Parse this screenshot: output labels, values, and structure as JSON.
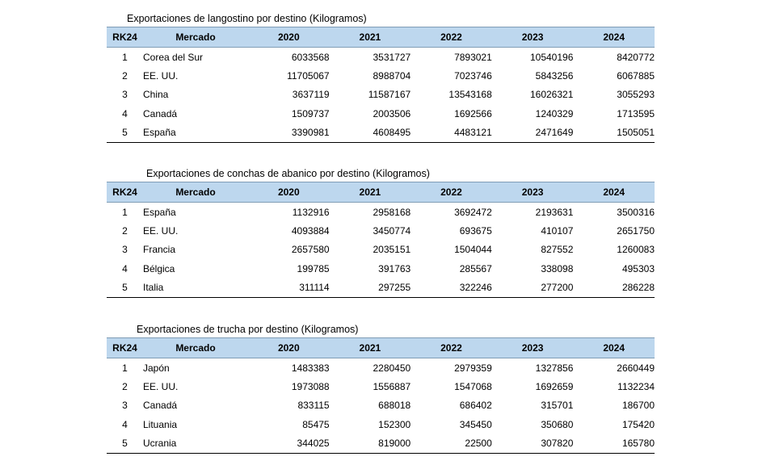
{
  "tables": [
    {
      "caption": "Exportaciones de langostino por destino (Kilogramos)",
      "headers": [
        "RK24",
        "Mercado",
        "2020",
        "2021",
        "2022",
        "2023",
        "2024"
      ],
      "rows": [
        [
          "1",
          "Corea del Sur",
          "6033568",
          "3531727",
          "7893021",
          "10540196",
          "8420772"
        ],
        [
          "2",
          "EE. UU.",
          "11705067",
          "8988704",
          "7023746",
          "5843256",
          "6067885"
        ],
        [
          "3",
          "China",
          "3637119",
          "11587167",
          "13543168",
          "16026321",
          "3055293"
        ],
        [
          "4",
          "Canadá",
          "1509737",
          "2003506",
          "1692566",
          "1240329",
          "1713595"
        ],
        [
          "5",
          "España",
          "3390981",
          "4608495",
          "4483121",
          "2471649",
          "1505051"
        ]
      ]
    },
    {
      "caption": "Exportaciones de conchas de abanico por destino (Kilogramos)",
      "headers": [
        "RK24",
        "Mercado",
        "2020",
        "2021",
        "2022",
        "2023",
        "2024"
      ],
      "rows": [
        [
          "1",
          "España",
          "1132916",
          "2958168",
          "3692472",
          "2193631",
          "3500316"
        ],
        [
          "2",
          "EE. UU.",
          "4093884",
          "3450774",
          "693675",
          "410107",
          "2651750"
        ],
        [
          "3",
          "Francia",
          "2657580",
          "2035151",
          "1504044",
          "827552",
          "1260083"
        ],
        [
          "4",
          "Bélgica",
          "199785",
          "391763",
          "285567",
          "338098",
          "495303"
        ],
        [
          "5",
          "Italia",
          "311114",
          "297255",
          "322246",
          "277200",
          "286228"
        ]
      ]
    },
    {
      "caption": "Exportaciones de trucha por destino (Kilogramos)",
      "headers": [
        "RK24",
        "Mercado",
        "2020",
        "2021",
        "2022",
        "2023",
        "2024"
      ],
      "rows": [
        [
          "1",
          "Japón",
          "1483383",
          "2280450",
          "2979359",
          "1327856",
          "2660449"
        ],
        [
          "2",
          "EE. UU.",
          "1973088",
          "1556887",
          "1547068",
          "1692659",
          "1132234"
        ],
        [
          "3",
          "Canadá",
          "833115",
          "688018",
          "686402",
          "315701",
          "186700"
        ],
        [
          "4",
          "Lituania",
          "85475",
          "152300",
          "345450",
          "350680",
          "175420"
        ],
        [
          "5",
          "Ucrania",
          "344025",
          "819000",
          "22500",
          "307820",
          "165780"
        ]
      ]
    }
  ],
  "colors": {
    "header_background": "#bdd7ee",
    "text": "#000000"
  }
}
